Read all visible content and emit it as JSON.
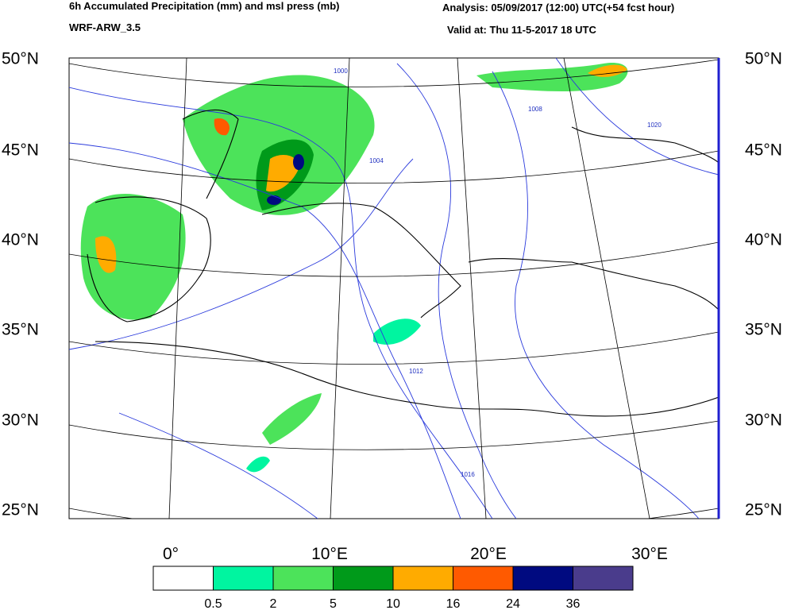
{
  "header": {
    "title": "6h Accumulated Precipitation (mm) and msl press (mb)",
    "model": "WRF-ARW_3.5",
    "analysis": "Analysis: 05/09/2017 (12:00) UTC(+54 fcst hour)",
    "valid": "Valid at: Thu 11-5-2017  18 UTC"
  },
  "map": {
    "lat_labels": [
      "50°N",
      "45°N",
      "40°N",
      "35°N",
      "30°N",
      "25°N"
    ],
    "lon_labels": [
      "0°",
      "10°E",
      "20°E",
      "30°E"
    ],
    "isobar_labels": [
      "1000",
      "1004",
      "1008",
      "1012",
      "1016",
      "1020"
    ]
  },
  "legend": {
    "colors": [
      "#ffffff",
      "#00f5a0",
      "#4ce35a",
      "#009a1a",
      "#ffab00",
      "#ff5a00",
      "#000a80",
      "#4a3c8c"
    ],
    "labels": [
      "0.5",
      "2",
      "5",
      "10",
      "16",
      "24",
      "36"
    ]
  }
}
